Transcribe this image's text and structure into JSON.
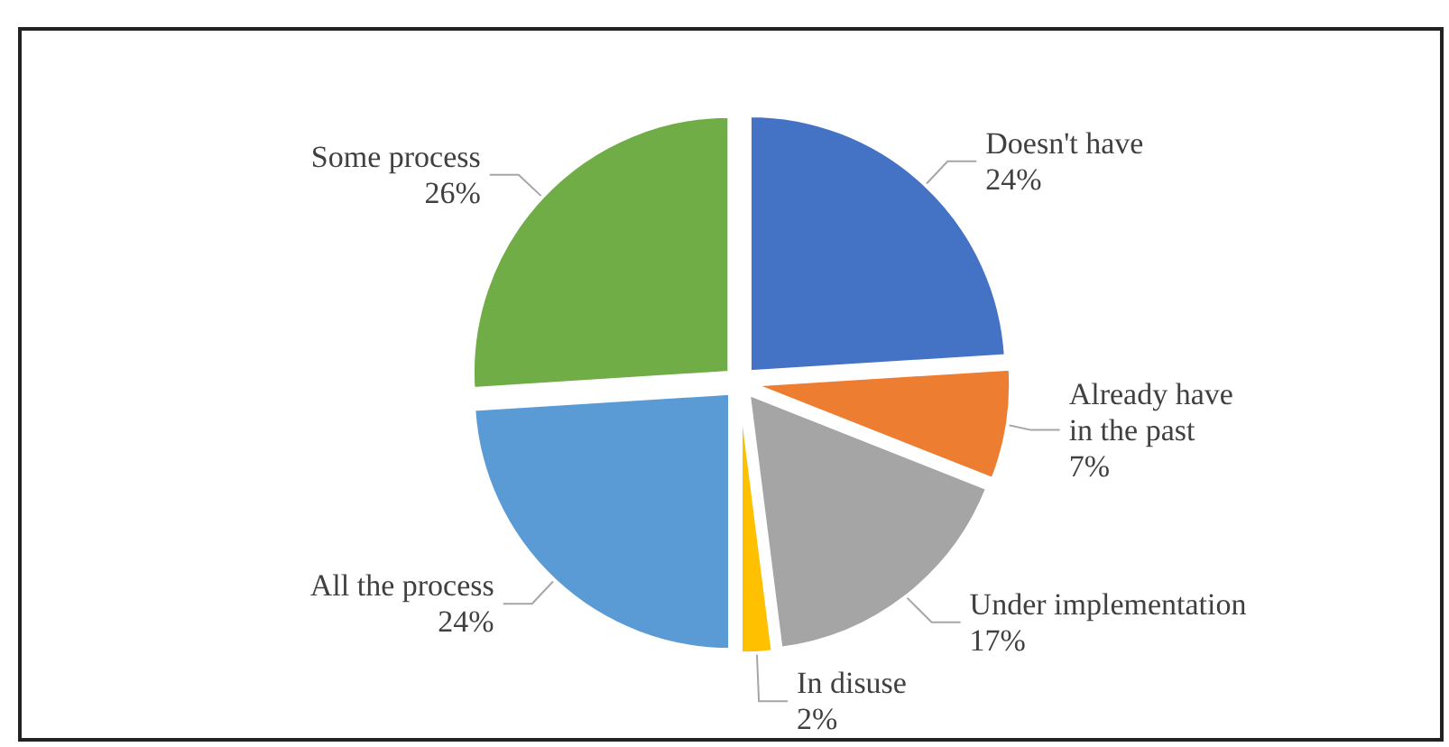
{
  "chart_data": {
    "type": "pie",
    "categories": [
      "Doesn't have",
      "Already have in the past",
      "Under implementation",
      "In disuse",
      "All the process",
      "Some process"
    ],
    "values": [
      24,
      7,
      17,
      2,
      24,
      26
    ],
    "colors": [
      "#4472c4",
      "#ed7d31",
      "#a5a5a5",
      "#ffc000",
      "#5b9bd5",
      "#70ad47"
    ],
    "value_labels": [
      "24%",
      "7%",
      "17%",
      "2%",
      "24%",
      "26%"
    ],
    "legend": false
  }
}
